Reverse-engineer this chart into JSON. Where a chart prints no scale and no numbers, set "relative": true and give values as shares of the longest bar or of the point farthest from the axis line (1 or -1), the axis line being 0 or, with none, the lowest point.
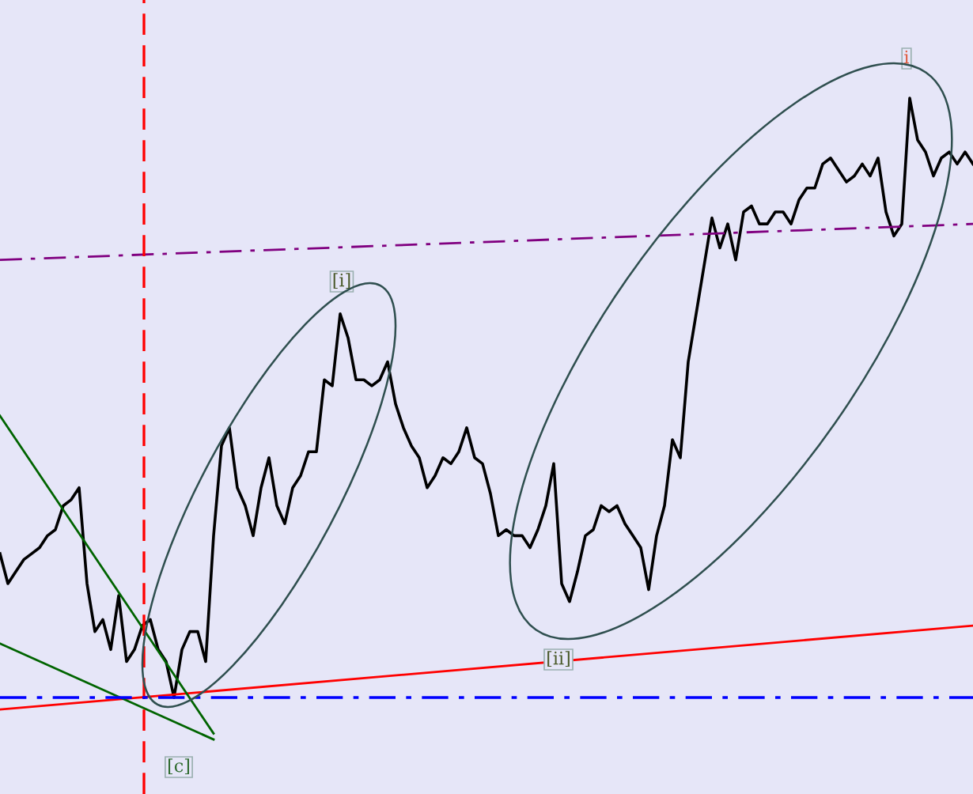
{
  "chart_data": {
    "type": "line",
    "relative": true,
    "categories": [
      null,
      null,
      null,
      null,
      null,
      null,
      null,
      null,
      null,
      null,
      null,
      null,
      null,
      null,
      null,
      null,
      null,
      null,
      null,
      null,
      null,
      null,
      null,
      null,
      null,
      null,
      null,
      null,
      null,
      null,
      null,
      null,
      null,
      null,
      null,
      null,
      null,
      null,
      null,
      null,
      null,
      null,
      null,
      null,
      null,
      null,
      null,
      null,
      null,
      null,
      null,
      null,
      null,
      null,
      null,
      null,
      null,
      null,
      null,
      null,
      null,
      null,
      null,
      null,
      null,
      null,
      null,
      null,
      null,
      null,
      null,
      null,
      null,
      null,
      null,
      null,
      null,
      null,
      null,
      null,
      null,
      null,
      null,
      null,
      null,
      null,
      null,
      null,
      null,
      null,
      null,
      null,
      null,
      null,
      null,
      null,
      null,
      null,
      null,
      null,
      null,
      null,
      null,
      null,
      null,
      null,
      null,
      null,
      null,
      null,
      null,
      null,
      null,
      null,
      null,
      null,
      null,
      null,
      null,
      null,
      null,
      null,
      null,
      null
    ],
    "series": [
      {
        "color": "#000000",
        "line_style": "solid",
        "values": [
          0.24,
          0.19,
          0.21,
          0.23,
          0.24,
          0.25,
          0.27,
          0.28,
          0.32,
          0.33,
          0.35,
          0.19,
          0.11,
          0.13,
          0.08,
          0.17,
          0.06,
          0.08,
          0.12,
          0.13,
          0.08,
          0.06,
          0,
          0.08,
          0.11,
          0.11,
          0.06,
          0.27,
          0.42,
          0.45,
          0.35,
          0.32,
          0.27,
          0.35,
          0.4,
          0.32,
          0.29,
          0.35,
          0.37,
          0.41,
          0.41,
          0.53,
          0.52,
          0.64,
          0.6,
          0.53,
          0.53,
          0.52,
          0.53,
          0.56,
          0.49,
          0.45,
          0.42,
          0.4,
          0.35,
          0.37,
          0.4,
          0.39,
          0.41,
          0.45,
          0.4,
          0.39,
          0.34,
          0.27,
          0.28,
          0.27,
          0.27,
          0.25,
          0.28,
          0.32,
          0.39,
          0.19,
          0.16,
          0.21,
          0.27,
          0.28,
          0.32,
          0.31,
          0.32,
          0.29,
          0.27,
          0.25,
          0.18,
          0.27,
          0.32,
          0.43,
          0.4,
          0.56,
          0.64,
          0.72,
          0.8,
          0.75,
          0.79,
          0.73,
          0.81,
          0.82,
          0.79,
          0.79,
          0.81,
          0.81,
          0.79,
          0.83,
          0.85,
          0.85,
          0.89,
          0.9,
          0.88,
          0.86,
          0.87,
          0.89,
          0.87,
          0.9,
          0.81,
          0.77,
          0.79,
          1.0,
          0.93,
          0.91,
          0.87,
          0.9,
          0.91,
          0.89,
          0.91,
          0.89
        ]
      },
      {
        "color": "#ff0000",
        "line_style": "solid",
        "values": [
          -0.02,
          null,
          null,
          null,
          null,
          null,
          null,
          null,
          null,
          null,
          null,
          null,
          null,
          null,
          null,
          null,
          null,
          null,
          null,
          null,
          null,
          null,
          null,
          null,
          null,
          null,
          null,
          null,
          null,
          null,
          null,
          null,
          null,
          null,
          null,
          null,
          null,
          null,
          null,
          null,
          null,
          null,
          null,
          null,
          null,
          null,
          null,
          null,
          null,
          null,
          null,
          null,
          null,
          null,
          null,
          null,
          null,
          null,
          null,
          null,
          null,
          null,
          null,
          null,
          null,
          null,
          null,
          null,
          null,
          null,
          null,
          null,
          null,
          null,
          null,
          null,
          null,
          null,
          null,
          null,
          null,
          null,
          null,
          null,
          null,
          null,
          null,
          null,
          null,
          null,
          null,
          null,
          null,
          null,
          null,
          null,
          null,
          null,
          null,
          null,
          null,
          null,
          null,
          null,
          null,
          null,
          null,
          null,
          null,
          null,
          null,
          null,
          null,
          null,
          null,
          null,
          null,
          null,
          null,
          null,
          null,
          null,
          null,
          0.12
        ]
      },
      {
        "color": "#006400",
        "line_style": "solid",
        "values": [
          0.47,
          null,
          null,
          null,
          null,
          null,
          null,
          null,
          null,
          null,
          null,
          null,
          null,
          null,
          null,
          null,
          null,
          null,
          null,
          null,
          null,
          null,
          null,
          null,
          null,
          null,
          null,
          -0.06,
          null,
          null,
          null,
          null,
          null,
          null,
          null,
          null,
          null,
          null,
          null,
          null,
          null,
          null,
          null,
          null,
          null,
          null,
          null,
          null,
          null,
          null,
          null,
          null,
          null,
          null,
          null,
          null,
          null,
          null,
          null,
          null,
          null,
          null,
          null,
          null,
          null,
          null,
          null,
          null,
          null,
          null,
          null,
          null,
          null,
          null,
          null,
          null,
          null,
          null,
          null,
          null,
          null,
          null,
          null,
          null,
          null,
          null,
          null,
          null,
          null,
          null,
          null,
          null,
          null,
          null,
          null,
          null,
          null,
          null,
          null,
          null,
          null,
          null,
          null,
          null,
          null,
          null,
          null,
          null,
          null,
          null,
          null,
          null,
          null,
          null,
          null,
          null,
          null,
          null,
          null,
          null,
          null,
          null,
          null,
          null
        ]
      },
      {
        "color": "#006400",
        "line_style": "solid",
        "values": [
          0.09,
          null,
          null,
          null,
          null,
          null,
          null,
          null,
          null,
          null,
          null,
          null,
          null,
          null,
          null,
          null,
          null,
          null,
          null,
          null,
          null,
          null,
          null,
          null,
          null,
          null,
          null,
          -0.07,
          null,
          null,
          null,
          null,
          null,
          null,
          null,
          null,
          null,
          null,
          null,
          null,
          null,
          null,
          null,
          null,
          null,
          null,
          null,
          null,
          null,
          null,
          null,
          null,
          null,
          null,
          null,
          null,
          null,
          null,
          null,
          null,
          null,
          null,
          null,
          null,
          null,
          null,
          null,
          null,
          null,
          null,
          null,
          null,
          null,
          null,
          null,
          null,
          null,
          null,
          null,
          null,
          null,
          null,
          null,
          null,
          null,
          null,
          null,
          null,
          null,
          null,
          null,
          null,
          null,
          null,
          null,
          null,
          null,
          null,
          null,
          null,
          null,
          null,
          null,
          null,
          null,
          null,
          null,
          null,
          null,
          null,
          null,
          null,
          null,
          null,
          null,
          null,
          null,
          null,
          null,
          null,
          null,
          null,
          null,
          null
        ]
      },
      {
        "color": "#800080",
        "line_style": "dashdot",
        "values": [
          0.73,
          null,
          null,
          null,
          null,
          null,
          null,
          null,
          null,
          null,
          null,
          null,
          null,
          null,
          null,
          null,
          null,
          null,
          null,
          null,
          null,
          null,
          null,
          null,
          null,
          null,
          null,
          null,
          null,
          null,
          null,
          null,
          null,
          null,
          null,
          null,
          null,
          null,
          null,
          null,
          null,
          null,
          null,
          null,
          null,
          null,
          null,
          null,
          null,
          null,
          null,
          null,
          null,
          null,
          null,
          null,
          null,
          null,
          null,
          null,
          null,
          null,
          null,
          null,
          null,
          null,
          null,
          null,
          null,
          null,
          null,
          null,
          null,
          null,
          null,
          null,
          null,
          null,
          null,
          null,
          null,
          null,
          null,
          null,
          null,
          null,
          null,
          null,
          null,
          null,
          null,
          null,
          null,
          null,
          null,
          null,
          null,
          null,
          null,
          null,
          null,
          null,
          null,
          null,
          null,
          null,
          null,
          null,
          null,
          null,
          null,
          null,
          null,
          null,
          null,
          null,
          null,
          null,
          null,
          null,
          null,
          null,
          null,
          0.79
        ]
      }
    ],
    "ref_lines": [
      {
        "axis": "y",
        "value": 0,
        "color": "#0000ff",
        "line_style": "dashdot"
      }
    ],
    "annotations": [
      "[c]",
      "[i]",
      "[ii]",
      "i"
    ]
  }
}
